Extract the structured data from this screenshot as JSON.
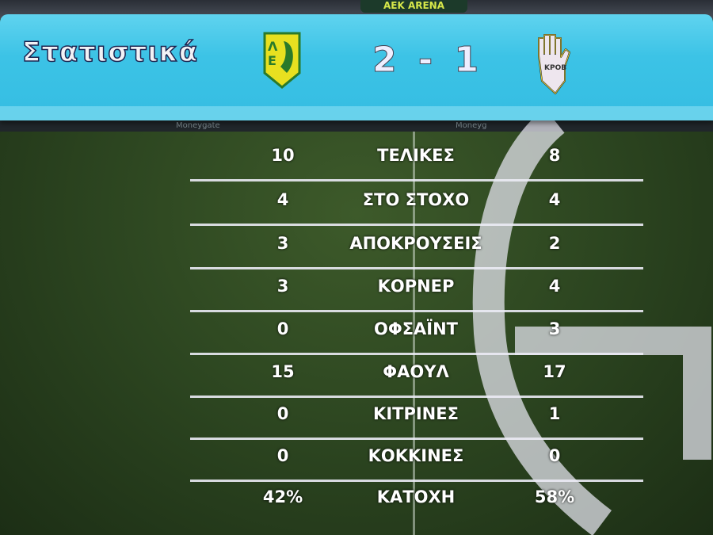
{
  "header": {
    "title": "Στατιστικά",
    "score": "2 - 1",
    "arena_sign": "AEK ARENA",
    "home_crest": {
      "icon": "aek-larnaca-crest",
      "lettering": "AEK 1994",
      "color": "#e8e020"
    },
    "away_crest": {
      "icon": "karmiotissa-hand-crest",
      "lettering": "ΚΡΟΒ",
      "color": "#f0e8f0"
    }
  },
  "adboard": [
    "Moneygate",
    "Moneyg"
  ],
  "stats": [
    {
      "label": "ΤΕΛΙΚΕΣ",
      "home": "10",
      "away": "8"
    },
    {
      "label": "ΣΤΟ ΣΤΟΧΟ",
      "home": "4",
      "away": "4"
    },
    {
      "label": "ΑΠΟΚΡΟΥΣΕΙΣ",
      "home": "3",
      "away": "2"
    },
    {
      "label": "ΚΟΡΝΕΡ",
      "home": "3",
      "away": "4"
    },
    {
      "label": "ΟΦΣΑΪΝΤ",
      "home": "0",
      "away": "3"
    },
    {
      "label": "ΦΑΟΥΛ",
      "home": "15",
      "away": "17"
    },
    {
      "label": "ΚΙΤΡΙΝΕΣ",
      "home": "0",
      "away": "1"
    },
    {
      "label": "ΚΟΚΚΙΝΕΣ",
      "home": "0",
      "away": "0"
    },
    {
      "label": "ΚΑΤΟΧΗ",
      "home": "42%",
      "away": "58%"
    }
  ],
  "colors": {
    "header": "#3cc3e6",
    "pitch": "#2c4520"
  }
}
